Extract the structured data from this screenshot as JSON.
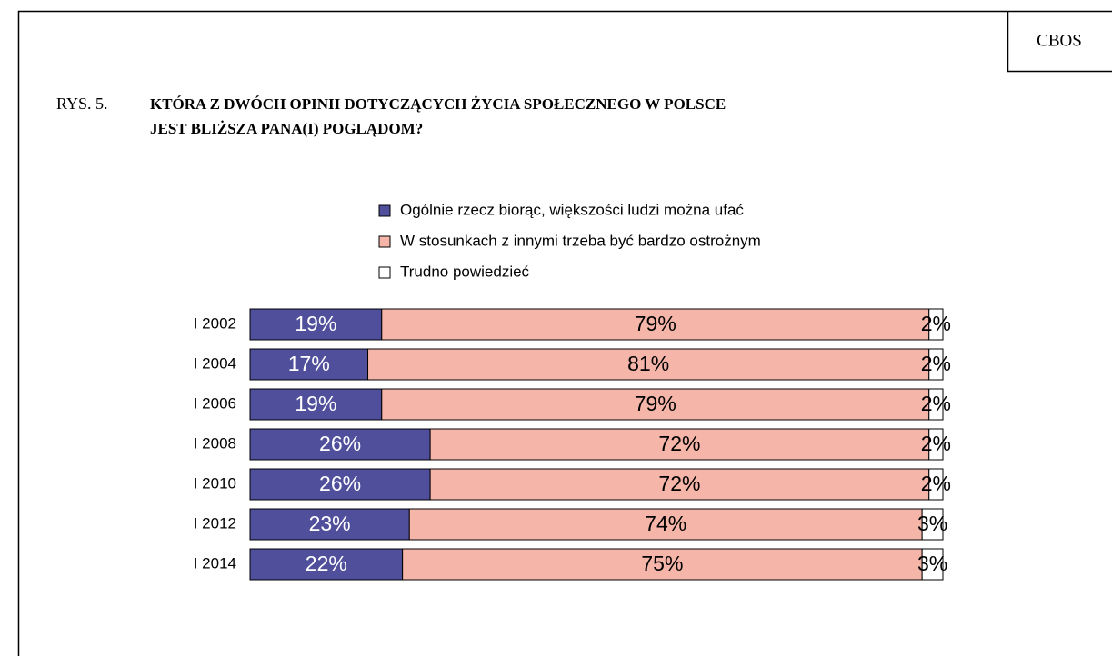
{
  "source": "CBOS",
  "chart_data": {
    "type": "stacked_bar_horizontal",
    "figure_label": "RYS. 5.",
    "title_lines": [
      "KTÓRA Z DWÓCH OPINII DOTYCZĄCYCH ŻYCIA SPOŁECZNEGO W POLSCE",
      "JEST BLIŻSZA PANA(I) POGLĄDOM?"
    ],
    "categories": [
      "I 2002",
      "I 2004",
      "I 2006",
      "I 2008",
      "I 2010",
      "I 2012",
      "I 2014"
    ],
    "xlim": [
      0,
      100
    ],
    "series": [
      {
        "name": "Ogólnie rzecz biorąc, większości ludzi można ufać",
        "color": "#4f4f9c",
        "label_color": "#ffffff",
        "values": [
          19,
          17,
          19,
          26,
          26,
          23,
          22
        ],
        "value_labels": [
          "19%",
          "17%",
          "19%",
          "26%",
          "26%",
          "23%",
          "22%"
        ]
      },
      {
        "name": "W stosunkach z innymi trzeba być bardzo ostrożnym",
        "color": "#f5b5a8",
        "label_color": "#000000",
        "values": [
          79,
          81,
          79,
          72,
          72,
          74,
          75
        ],
        "value_labels": [
          "79%",
          "81%",
          "79%",
          "72%",
          "72%",
          "74%",
          "75%"
        ]
      },
      {
        "name": "Trudno powiedzieć",
        "color": "#ffffff",
        "label_color": "#000000",
        "values": [
          2,
          2,
          2,
          2,
          2,
          3,
          3
        ],
        "value_labels": [
          "2%",
          "2%",
          "2%",
          "2%",
          "2%",
          "3%",
          "3%"
        ]
      }
    ]
  }
}
